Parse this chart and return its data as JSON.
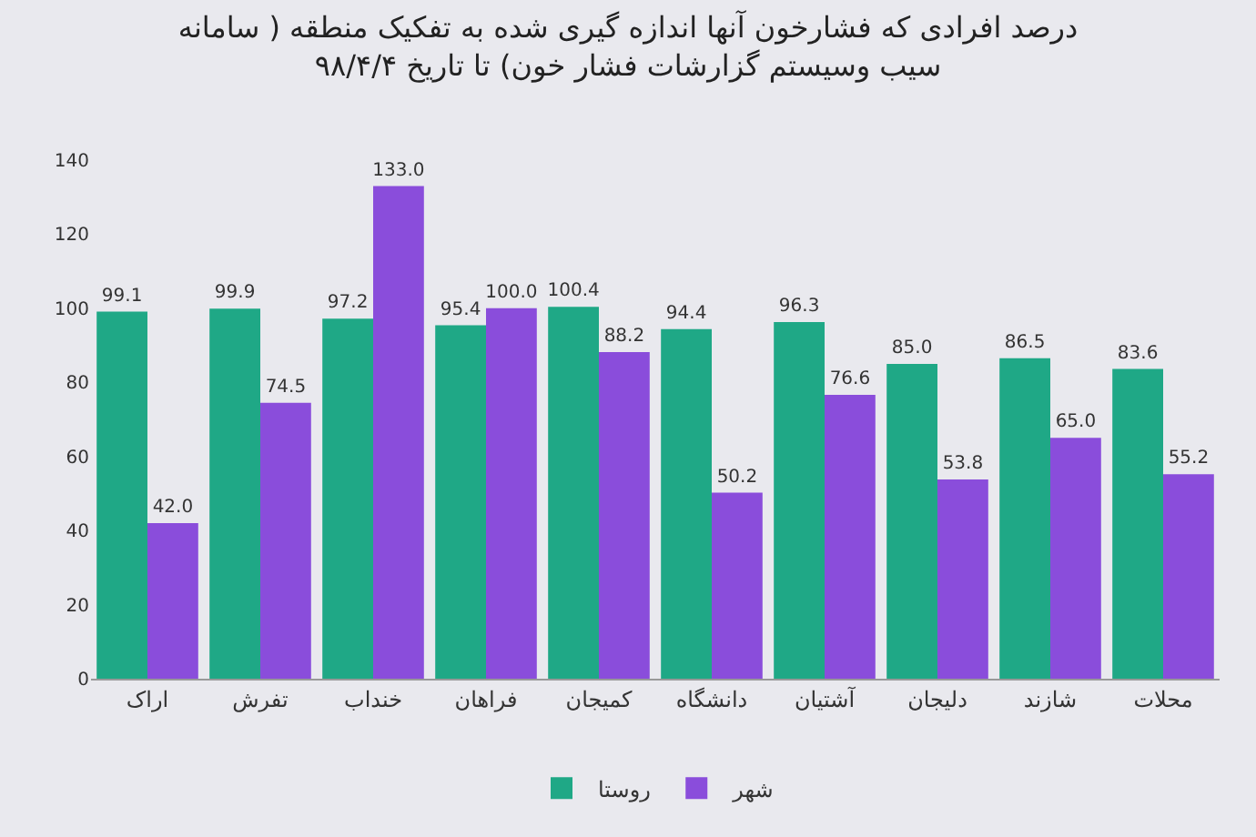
{
  "chart_data": {
    "type": "bar",
    "title": "درصد افرادی که فشارخون آنها اندازه گیری شده به تفکیک منطقه ( سامانه سیب وسیستم گزارشات فشار خون) تا تاریخ ۹۸/۴/۴",
    "categories": [
      "اراک",
      "تفرش",
      "خنداب",
      "فراهان",
      "کمیجان",
      "دانشگاه",
      "آشتیان",
      "دلیجان",
      "شازند",
      "محلات"
    ],
    "series": [
      {
        "name": "روستا",
        "color": "#1fa886",
        "values": [
          99.1,
          99.9,
          97.2,
          95.4,
          100.4,
          94.4,
          96.3,
          85.0,
          86.5,
          83.6
        ],
        "value_labels": [
          "99.1",
          "99.9",
          "97.2",
          "95.4",
          "100.4",
          "94.4",
          "96.3",
          "85.0",
          "86.5",
          "83.6"
        ]
      },
      {
        "name": "شهر",
        "color": "#8a4ddb",
        "values": [
          42.0,
          74.5,
          133.0,
          100.0,
          88.2,
          50.2,
          76.6,
          53.8,
          65.0,
          55.2
        ],
        "value_labels": [
          "42.0",
          "74.5",
          "133.0",
          "100.0",
          "88.2",
          "50.2",
          "76.6",
          "53.8",
          "65.0",
          "55.2"
        ]
      }
    ],
    "ylim": [
      0,
      140
    ],
    "yticks": [
      0,
      20,
      40,
      60,
      80,
      100,
      120,
      140
    ],
    "grid": false,
    "legend": "bottom"
  }
}
